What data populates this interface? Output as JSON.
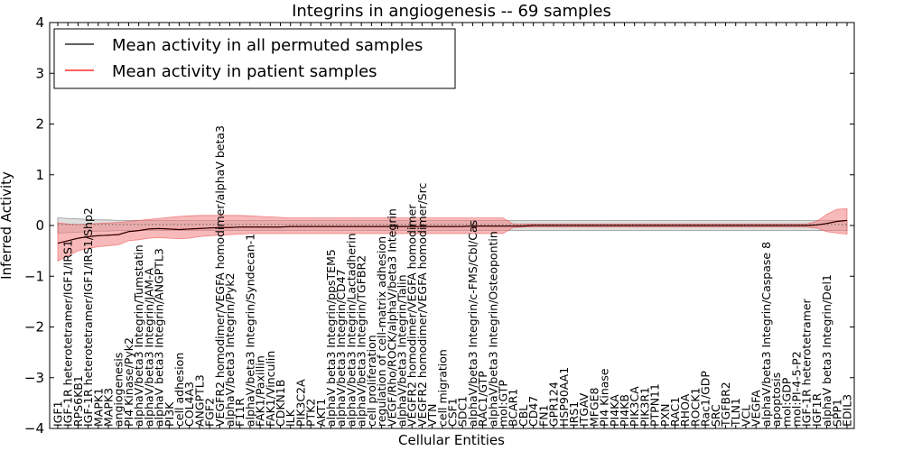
{
  "chart_data": {
    "type": "line",
    "title": "Integrins in angiogenesis -- 69 samples",
    "xlabel": "Cellular Entities",
    "ylabel": "Inferred Activity",
    "ylim": [
      -4,
      4
    ],
    "yticks": [
      -4,
      -3,
      -2,
      -1,
      0,
      1,
      2,
      3,
      4
    ],
    "legend_position": "top-left",
    "grid": false,
    "colors": {
      "permuted": "#000000",
      "patient": "#ff0000",
      "patient_band": "#f08080",
      "permuted_band": "#bfbfbf"
    },
    "categories": [
      "IGF1",
      "IGF-1R heterotetramer/IGF1/IRS1",
      "RPS6KB1",
      "IGF-1R heterotetramer/IGF1/IRS1/Shp2",
      "MAPK1",
      "MAPK3",
      "angiogenesis",
      "PI4 Kinase/Pyk2",
      "alphaV/beta3 Integrin/Tumstatin",
      "alphaV/beta3 Integrin/JAM-A",
      "alphaV beta3 Integrin/ANGPTL3",
      "PI3K",
      "cell adhesion",
      "COL4A3",
      "ANGPTL3",
      "FGF2",
      "VEGFR2 homodimer/VEGFA homodimer/alphaV beta3",
      "alphaV/beta3 Integrin/Pyk2",
      "F11R",
      "alphaV/beta3 Integrin/Syndecan-1",
      "FAK1/Paxillin",
      "FAK1/Vinculin",
      "CDKN1B",
      "ILK",
      "PIK3C2A",
      "PTK2",
      "AKT1",
      "alphaV beta3 Integrin/ppsTEM5",
      "alphaV/beta3 Integrin/CD47",
      "alphaV/beta3 Integrin/Lactadherin",
      "alphaV/beta3 Integrin/TGFBR2",
      "cell proliferation",
      "regulation of cell-matrix adhesion",
      "VEGF/Rho/ROCK/alphaV/beta3 Integrin",
      "alphaV/beta3 Integrin/Talin",
      "VEGFR2 homodimer/VEGFA homodimer",
      "VEGFR2 homodimer/VEGFA homodimer/Src",
      "VTN",
      "cell migration",
      "CSF1",
      "SDC1",
      "alphaV/beta3 Integrin/c-FMS/Cbl/Cas",
      "RAC1/GTP",
      "alphaV/beta3 Integrin/Osteopontin",
      "mol:GTP",
      "BCAR1",
      "CBL",
      "CD47",
      "FN1",
      "GPR124",
      "HSP90AA1",
      "IRS1",
      "ITGAV",
      "MFGE8",
      "PI4 Kinase",
      "PI4KA",
      "PI4KB",
      "PIK3CA",
      "PIK3R1",
      "PTPN11",
      "PXN",
      "RAC1",
      "RHOA",
      "ROCK1",
      "Rac1/GDP",
      "SRC",
      "TGFBR2",
      "TLN1",
      "VCL",
      "VEGFA",
      "alphaV/beta3 Integrin/Caspase 8",
      "apoptosis",
      "mol:GDP",
      "mol:PI-4-5-P2",
      "IGF-1R heterotetramer",
      "IGF1R",
      "alphaV beta3 Integrin/Del1",
      "SPP1",
      "EDIL3"
    ],
    "series": [
      {
        "name": "Mean activity in all permuted samples",
        "values": [
          0.02,
          0.02,
          0.02,
          0.02,
          0.02,
          0.02,
          0.02,
          0.02,
          0.02,
          0.02,
          0.02,
          0.02,
          0.02,
          0.02,
          0.02,
          0.02,
          0.02,
          0.02,
          0.02,
          0.02,
          0.02,
          0.02,
          0.02,
          0.02,
          0.02,
          0.02,
          0.02,
          0.02,
          0.02,
          0.02,
          0.02,
          0.02,
          0.02,
          0.02,
          0.02,
          0.02,
          0.02,
          0.02,
          0.02,
          0.02,
          0.02,
          0.02,
          0.02,
          0.02,
          0.02,
          0.02,
          0.02,
          0.02,
          0.02,
          0.02,
          0.02,
          0.02,
          0.02,
          0.02,
          0.02,
          0.02,
          0.02,
          0.02,
          0.02,
          0.02,
          0.02,
          0.02,
          0.02,
          0.02,
          0.02,
          0.02,
          0.02,
          0.02,
          0.02,
          0.02,
          0.02,
          0.02,
          0.02,
          0.02,
          0.02,
          0.02,
          0.02,
          0.02,
          0.02
        ],
        "band_lower": [
          -0.15,
          -0.14,
          -0.13,
          -0.12,
          -0.11,
          -0.11,
          -0.1,
          -0.1,
          -0.1,
          -0.1,
          -0.1,
          -0.1,
          -0.1,
          -0.1,
          -0.1,
          -0.1,
          -0.1,
          -0.1,
          -0.1,
          -0.1,
          -0.1,
          -0.1,
          -0.1,
          -0.1,
          -0.1,
          -0.1,
          -0.1,
          -0.1,
          -0.1,
          -0.1,
          -0.1,
          -0.1,
          -0.1,
          -0.1,
          -0.1,
          -0.1,
          -0.1,
          -0.1,
          -0.1,
          -0.1,
          -0.1,
          -0.1,
          -0.1,
          -0.1,
          -0.1,
          -0.1,
          -0.1,
          -0.1,
          -0.1,
          -0.1,
          -0.1,
          -0.1,
          -0.1,
          -0.1,
          -0.1,
          -0.1,
          -0.1,
          -0.1,
          -0.1,
          -0.1,
          -0.1,
          -0.1,
          -0.1,
          -0.1,
          -0.1,
          -0.1,
          -0.1,
          -0.1,
          -0.1,
          -0.1,
          -0.1,
          -0.1,
          -0.1,
          -0.1,
          -0.1,
          -0.1,
          -0.1,
          -0.1,
          -0.1
        ],
        "band_upper": [
          0.15,
          0.14,
          0.13,
          0.12,
          0.11,
          0.11,
          0.1,
          0.1,
          0.1,
          0.1,
          0.1,
          0.1,
          0.1,
          0.1,
          0.1,
          0.1,
          0.1,
          0.1,
          0.1,
          0.1,
          0.1,
          0.1,
          0.1,
          0.1,
          0.1,
          0.1,
          0.1,
          0.1,
          0.1,
          0.1,
          0.1,
          0.1,
          0.1,
          0.1,
          0.1,
          0.1,
          0.1,
          0.1,
          0.1,
          0.1,
          0.1,
          0.1,
          0.1,
          0.1,
          0.1,
          0.1,
          0.1,
          0.1,
          0.1,
          0.1,
          0.1,
          0.1,
          0.1,
          0.1,
          0.1,
          0.1,
          0.1,
          0.1,
          0.1,
          0.1,
          0.1,
          0.1,
          0.1,
          0.1,
          0.1,
          0.1,
          0.1,
          0.1,
          0.1,
          0.1,
          0.1,
          0.1,
          0.1,
          0.1,
          0.1,
          0.1,
          0.1,
          0.1,
          0.1
        ]
      },
      {
        "name": "Mean activity in patient samples",
        "values": [
          -0.35,
          -0.3,
          -0.25,
          -0.22,
          -0.2,
          -0.19,
          -0.18,
          -0.12,
          -0.1,
          -0.07,
          -0.06,
          -0.07,
          -0.08,
          -0.07,
          -0.06,
          -0.05,
          -0.04,
          -0.04,
          -0.03,
          -0.03,
          -0.03,
          -0.03,
          -0.03,
          -0.02,
          -0.02,
          -0.02,
          -0.02,
          -0.02,
          -0.02,
          -0.02,
          -0.02,
          -0.02,
          -0.02,
          -0.02,
          -0.02,
          -0.02,
          -0.02,
          -0.02,
          -0.02,
          -0.02,
          -0.02,
          -0.01,
          -0.01,
          -0.01,
          -0.01,
          -0.01,
          -0.01,
          0,
          0,
          0,
          0,
          0,
          0,
          0,
          0,
          0,
          0,
          0,
          0,
          0,
          0,
          0,
          0,
          0,
          0,
          0,
          0,
          0,
          0,
          0,
          0,
          0,
          0,
          0,
          0,
          0.01,
          0.04,
          0.08,
          0.1
        ],
        "band_lower": [
          -0.7,
          -0.6,
          -0.5,
          -0.45,
          -0.42,
          -0.4,
          -0.38,
          -0.3,
          -0.28,
          -0.25,
          -0.24,
          -0.25,
          -0.26,
          -0.25,
          -0.22,
          -0.2,
          -0.19,
          -0.18,
          -0.17,
          -0.16,
          -0.16,
          -0.16,
          -0.16,
          -0.16,
          -0.16,
          -0.16,
          -0.16,
          -0.16,
          -0.16,
          -0.16,
          -0.16,
          -0.16,
          -0.16,
          -0.16,
          -0.16,
          -0.16,
          -0.16,
          -0.16,
          -0.16,
          -0.16,
          -0.16,
          -0.16,
          -0.16,
          -0.16,
          -0.16,
          -0.04,
          -0.03,
          -0.03,
          -0.03,
          -0.03,
          -0.03,
          -0.03,
          -0.03,
          -0.03,
          -0.03,
          -0.03,
          -0.03,
          -0.03,
          -0.03,
          -0.03,
          -0.03,
          -0.03,
          -0.03,
          -0.03,
          -0.03,
          -0.03,
          -0.03,
          -0.03,
          -0.03,
          -0.03,
          -0.03,
          -0.03,
          -0.03,
          -0.03,
          -0.03,
          -0.05,
          -0.12,
          -0.15,
          -0.17
        ],
        "band_upper": [
          0.05,
          0.03,
          0.02,
          0.03,
          0.04,
          0.05,
          0.06,
          0.08,
          0.1,
          0.12,
          0.14,
          0.16,
          0.18,
          0.19,
          0.2,
          0.2,
          0.2,
          0.2,
          0.2,
          0.19,
          0.18,
          0.17,
          0.16,
          0.15,
          0.15,
          0.15,
          0.15,
          0.15,
          0.15,
          0.15,
          0.15,
          0.15,
          0.15,
          0.15,
          0.15,
          0.15,
          0.15,
          0.15,
          0.15,
          0.15,
          0.15,
          0.15,
          0.15,
          0.15,
          0.15,
          0.03,
          0.03,
          0.03,
          0.03,
          0.03,
          0.03,
          0.03,
          0.03,
          0.03,
          0.03,
          0.03,
          0.03,
          0.03,
          0.03,
          0.03,
          0.03,
          0.03,
          0.03,
          0.03,
          0.03,
          0.03,
          0.03,
          0.03,
          0.03,
          0.03,
          0.03,
          0.03,
          0.03,
          0.03,
          0.03,
          0.08,
          0.22,
          0.32,
          0.33
        ]
      }
    ]
  }
}
